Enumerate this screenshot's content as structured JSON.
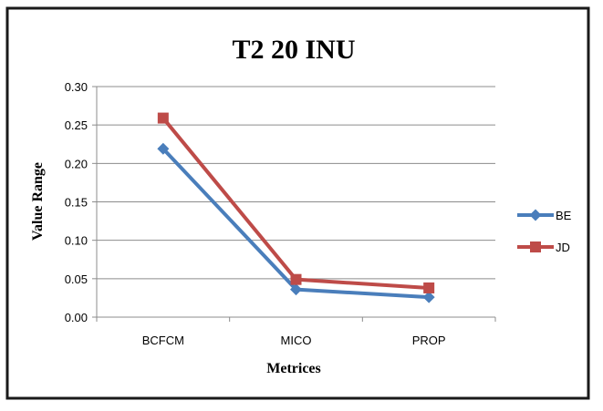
{
  "chart_data": {
    "type": "line",
    "title": "T2 20 INU",
    "xlabel": "Metrices",
    "ylabel": "Value Range",
    "categories": [
      "BCFCM",
      "MICO",
      "PROP"
    ],
    "ylim": [
      0,
      0.3
    ],
    "yticks": [
      "0.30",
      "0.25",
      "0.20",
      "0.15",
      "0.10",
      "0.05",
      "0.00"
    ],
    "grid": true,
    "legend_position": "right",
    "series": [
      {
        "name": "BE",
        "values": [
          0.219,
          0.036,
          0.026
        ],
        "color": "#4a7ebb",
        "marker": "diamond"
      },
      {
        "name": "JD",
        "values": [
          0.259,
          0.049,
          0.038
        ],
        "color": "#be4b48",
        "marker": "square"
      }
    ]
  }
}
